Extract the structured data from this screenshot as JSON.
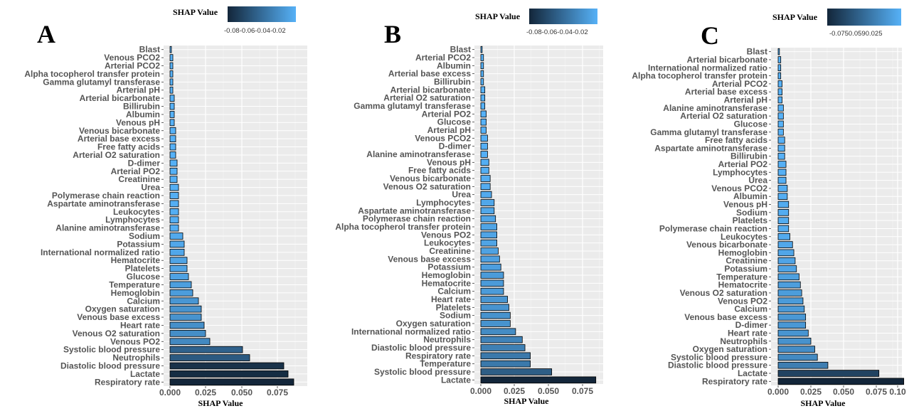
{
  "legend": {
    "title": "SHAP Value",
    "colors": {
      "low": "#13263a",
      "high": "#56b1f7"
    },
    "label_A": "-0.08-0.06-0.04-0.02",
    "label_B": "-0.08-0.06-0.04-0.02",
    "label_C": "-0.0750.0590.025"
  },
  "panel_labels": [
    "A",
    "B",
    "C"
  ],
  "chart_data": [
    {
      "type": "bar",
      "orientation": "horizontal",
      "xlabel": "SHAP Value",
      "xticks": [
        "0.000",
        "0.025",
        "0.050",
        "0.075"
      ],
      "xlim": [
        0,
        0.09
      ],
      "grid": true,
      "categories": [
        "Respiratory rate",
        "Lactate",
        "Diastolic blood pressure",
        "Neutrophils",
        "Systolic blood pressure",
        "Venous PO2",
        "Venous O2 saturation",
        "Heart rate",
        "Venous base excess",
        "Oxygen saturation",
        "Calcium",
        "Hemoglobin",
        "Temperature",
        "Glucose",
        "Platelets",
        "Hematocrite",
        "International normalized ratio",
        "Potassium",
        "Sodium",
        "Alanine aminotransferase",
        "Lymphocytes",
        "Leukocytes",
        "Aspartate aminotransferase",
        "Polymerase chain reaction",
        "Urea",
        "Creatinine",
        "Arterial PO2",
        "D-dimer",
        "Arterial O2 saturation",
        "Free fatty acids",
        "Arterial base excess",
        "Venous bicarbonate",
        "Venous pH",
        "Albumin",
        "Billirubin",
        "Arterial bicarbonate",
        "Arterial pH",
        "Gamma glutamyl transferase",
        "Alpha tocopherol transfer protein",
        "Arterial PCO2",
        "Venous PCO2",
        "Blast"
      ],
      "values": [
        0.087,
        0.083,
        0.08,
        0.056,
        0.051,
        0.028,
        0.025,
        0.024,
        0.022,
        0.022,
        0.02,
        0.016,
        0.015,
        0.013,
        0.012,
        0.012,
        0.01,
        0.01,
        0.009,
        0.006,
        0.006,
        0.006,
        0.006,
        0.006,
        0.006,
        0.005,
        0.005,
        0.005,
        0.004,
        0.004,
        0.004,
        0.004,
        0.003,
        0.003,
        0.003,
        0.003,
        0.002,
        0.002,
        0.002,
        0.002,
        0.002,
        0.001
      ]
    },
    {
      "type": "bar",
      "orientation": "horizontal",
      "xlabel": "SHAP Value",
      "xticks": [
        "0.000",
        "0.025",
        "0.050",
        "0.075"
      ],
      "xlim": [
        0,
        0.089
      ],
      "grid": true,
      "categories": [
        "Lactate",
        "Systolic blood pressure",
        "Temperature",
        "Respiratory rate",
        "Diastolic blood pressure",
        "Neutrophils",
        "International normalized ratio",
        "Oxygen saturation",
        "Sodium",
        "Platelets",
        "Heart rate",
        "Calcium",
        "Hematocrite",
        "Hemoglobin",
        "Potassium",
        "Venous base excess",
        "Creatinine",
        "Leukocytes",
        "Venous PO2",
        "Alpha tocopherol transfer protein",
        "Polymerase chain reaction",
        "Aspartate aminotransferase",
        "Lymphocytes",
        "Urea",
        "Venous O2 saturation",
        "Venous bicarbonate",
        "Free fatty acids",
        "Venous pH",
        "Alanine aminotransferase",
        "D-dimer",
        "Venous PCO2",
        "Arterial pH",
        "Glucose",
        "Arterial PO2",
        "Gamma glutamyl transferase",
        "Arterial O2 saturation",
        "Arterial bicarbonate",
        "Billirubin",
        "Arterial base excess",
        "Albumin",
        "Arterial PCO2",
        "Blast"
      ],
      "values": [
        0.086,
        0.053,
        0.037,
        0.037,
        0.033,
        0.031,
        0.026,
        0.022,
        0.022,
        0.021,
        0.02,
        0.017,
        0.017,
        0.017,
        0.015,
        0.014,
        0.013,
        0.012,
        0.012,
        0.012,
        0.011,
        0.01,
        0.01,
        0.008,
        0.007,
        0.007,
        0.006,
        0.006,
        0.005,
        0.005,
        0.005,
        0.004,
        0.004,
        0.004,
        0.003,
        0.003,
        0.003,
        0.002,
        0.002,
        0.002,
        0.002,
        0.001
      ]
    },
    {
      "type": "bar",
      "orientation": "horizontal",
      "xlabel": "SHAP Value",
      "xticks": [
        "0.000",
        "0.025",
        "0.050",
        "0.075",
        "0.10"
      ],
      "xlim": [
        0,
        0.1
      ],
      "grid": true,
      "categories": [
        "Respiratory rate",
        "Lactate",
        "Diastolic blood pressure",
        "Systolic blood pressure",
        "Oxygen saturation",
        "Neutrophils",
        "Heart rate",
        "D-dimer",
        "Venous base excess",
        "Calcium",
        "Venous PO2",
        "Venous O2 saturation",
        "Hematocrite",
        "Temperature",
        "Potassium",
        "Creatinine",
        "Hemoglobin",
        "Venous bicarbonate",
        "Leukocytes",
        "Polymerase chain reaction",
        "Platelets",
        "Sodium",
        "Venous pH",
        "Albumin",
        "Venous PCO2",
        "Urea",
        "Lymphocytes",
        "Arterial PO2",
        "Billirubin",
        "Aspartate aminotransferase",
        "Free fatty acids",
        "Gamma glutamyl transferase",
        "Glucose",
        "Arterial O2 saturation",
        "Alanine aminotransferase",
        "Arterial pH",
        "Arterial base excess",
        "Arterial PCO2",
        "Alpha tocopherol transfer protein",
        "International normalized ratio",
        "Arterial bicarbonate",
        "Blast"
      ],
      "values": [
        0.096,
        0.077,
        0.038,
        0.03,
        0.028,
        0.025,
        0.023,
        0.021,
        0.021,
        0.02,
        0.019,
        0.018,
        0.017,
        0.016,
        0.014,
        0.013,
        0.012,
        0.011,
        0.009,
        0.008,
        0.008,
        0.008,
        0.008,
        0.007,
        0.007,
        0.006,
        0.006,
        0.006,
        0.005,
        0.005,
        0.005,
        0.004,
        0.004,
        0.004,
        0.004,
        0.003,
        0.003,
        0.003,
        0.002,
        0.002,
        0.002,
        0.001
      ]
    }
  ]
}
